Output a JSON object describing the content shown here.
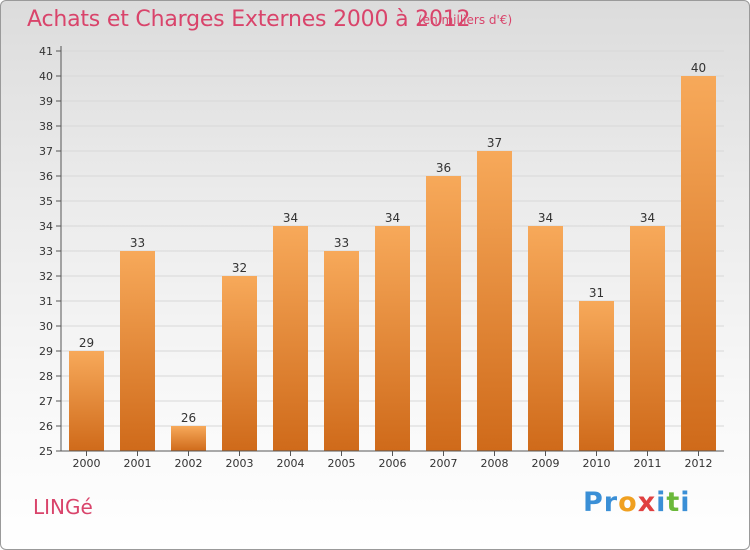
{
  "title": "Achats et Charges Externes 2000 à 2012",
  "subtitle": "(en milliers d'€)",
  "commune": "LINGé",
  "logo": {
    "letters": [
      "P",
      "r",
      "o",
      "x",
      "i",
      "t",
      "i"
    ],
    "colors": [
      "#3a8fd6",
      "#3a8fd6",
      "#f0a020",
      "#e04040",
      "#3a8fd6",
      "#6ab83a",
      "#3a8fd6"
    ]
  },
  "colors": {
    "title": "#d9446b",
    "bar_top": "#f7a95a",
    "bar_bottom": "#cf6a1a",
    "grid": "#d8d8d8"
  },
  "chart_data": {
    "type": "bar",
    "categories": [
      "2000",
      "2001",
      "2002",
      "2003",
      "2004",
      "2005",
      "2006",
      "2007",
      "2008",
      "2009",
      "2010",
      "2011",
      "2012"
    ],
    "values": [
      29,
      33,
      26,
      32,
      34,
      33,
      34,
      36,
      37,
      34,
      31,
      34,
      40
    ],
    "ylim": [
      25,
      41
    ],
    "yticks": [
      25,
      26,
      27,
      28,
      29,
      30,
      31,
      32,
      33,
      34,
      35,
      36,
      37,
      38,
      39,
      40,
      41
    ],
    "grid": true
  }
}
